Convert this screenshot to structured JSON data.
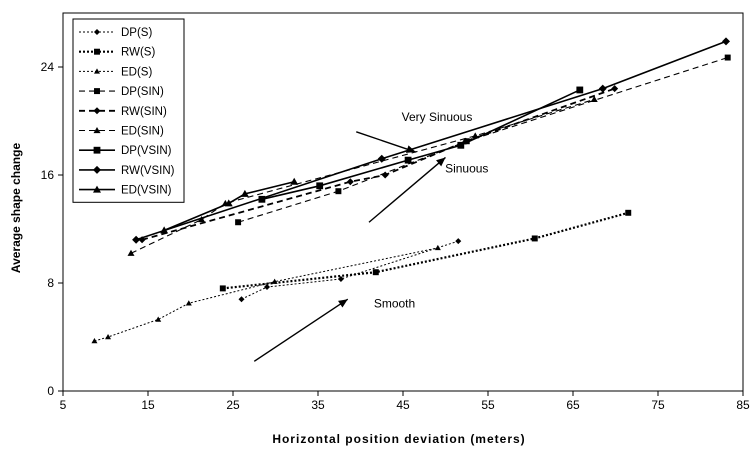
{
  "chart_data": {
    "type": "line",
    "xlabel": "Horizontal position deviation (meters)",
    "ylabel": "Average shape change",
    "xlim": [
      5,
      85
    ],
    "ylim": [
      0,
      28
    ],
    "xticks": [
      5,
      15,
      25,
      35,
      45,
      55,
      65,
      75,
      85
    ],
    "yticks": [
      0,
      8,
      16,
      24
    ],
    "legend_position": "top-left",
    "series": [
      {
        "name": "DP(S)",
        "group": "S",
        "marker": "diamond",
        "dash": "dot",
        "points": [
          [
            26,
            6.8
          ],
          [
            29,
            7.7
          ],
          [
            37.7,
            8.3
          ],
          [
            51.5,
            11.1
          ]
        ]
      },
      {
        "name": "RW(S)",
        "group": "S",
        "marker": "square",
        "dash": "dot",
        "points": [
          [
            23.8,
            7.6
          ],
          [
            41.8,
            8.8
          ],
          [
            60.5,
            11.3
          ],
          [
            71.5,
            13.2
          ]
        ]
      },
      {
        "name": "ED(S)",
        "group": "S",
        "marker": "triangle",
        "dash": "dot",
        "points": [
          [
            8.7,
            3.7
          ],
          [
            10.3,
            4.0
          ],
          [
            16.2,
            5.3
          ],
          [
            19.8,
            6.5
          ],
          [
            29.9,
            8.1
          ],
          [
            49.1,
            10.6
          ]
        ]
      },
      {
        "name": "DP(SIN)",
        "group": "SIN",
        "marker": "square",
        "dash": "dash",
        "points": [
          [
            25.6,
            12.5
          ],
          [
            37.4,
            14.8
          ],
          [
            52.5,
            18.5
          ],
          [
            83.2,
            24.7
          ]
        ]
      },
      {
        "name": "RW(SIN)",
        "group": "SIN",
        "marker": "diamond",
        "dash": "dash",
        "points": [
          [
            14.3,
            11.2
          ],
          [
            38.8,
            15.5
          ],
          [
            42.9,
            16.0
          ],
          [
            52.4,
            18.5
          ],
          [
            69.9,
            22.4
          ]
        ]
      },
      {
        "name": "ED(SIN)",
        "group": "SIN",
        "marker": "triangle",
        "dash": "dash",
        "points": [
          [
            13.0,
            10.2
          ],
          [
            21.3,
            12.7
          ],
          [
            24.1,
            13.9
          ],
          [
            53.5,
            18.9
          ],
          [
            67.5,
            21.6
          ]
        ]
      },
      {
        "name": "DP(VSIN)",
        "group": "VSIN",
        "marker": "square",
        "dash": "solid",
        "points": [
          [
            28.4,
            14.2
          ],
          [
            35.2,
            15.2
          ],
          [
            45.6,
            17.1
          ],
          [
            51.8,
            18.2
          ],
          [
            65.8,
            22.3
          ]
        ]
      },
      {
        "name": "RW(VSIN)",
        "group": "VSIN",
        "marker": "diamond",
        "dash": "solid",
        "points": [
          [
            13.6,
            11.2
          ],
          [
            42.5,
            17.2
          ],
          [
            68.5,
            22.4
          ],
          [
            83.0,
            25.9
          ]
        ]
      },
      {
        "name": "ED(VSIN)",
        "group": "VSIN",
        "marker": "triangle",
        "dash": "solid",
        "points": [
          [
            16.9,
            11.9
          ],
          [
            24.5,
            13.9
          ],
          [
            26.4,
            14.6
          ],
          [
            32.2,
            15.5
          ]
        ]
      }
    ],
    "annotations": [
      {
        "text": "Very Sinuous",
        "x": 49,
        "y": 20
      },
      {
        "text": "Sinuous",
        "x": 52.5,
        "y": 16.2
      },
      {
        "text": "Smooth",
        "x": 44,
        "y": 6.2
      }
    ],
    "arrows": [
      {
        "from": [
          39.5,
          19.2
        ],
        "to": [
          46.5,
          17.7
        ]
      },
      {
        "from": [
          41,
          12.5
        ],
        "to": [
          50,
          17.3
        ]
      },
      {
        "from": [
          27.5,
          2.2
        ],
        "to": [
          38.5,
          6.8
        ]
      }
    ]
  }
}
